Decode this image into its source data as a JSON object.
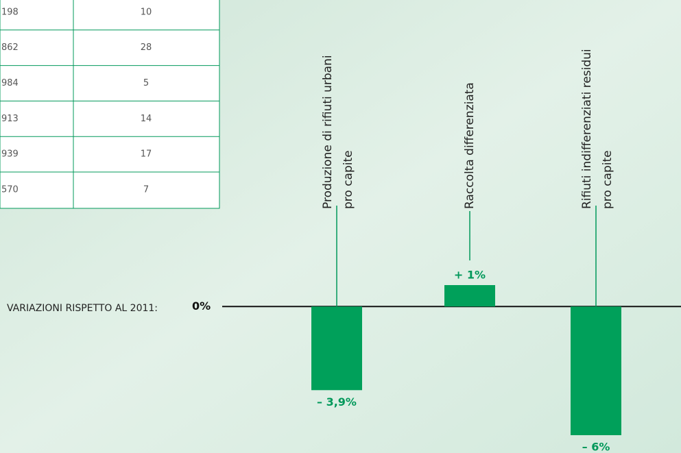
{
  "table": {
    "rows": [
      [
        "198",
        "10"
      ],
      [
        "862",
        "28"
      ],
      [
        "984",
        "5"
      ],
      [
        "913",
        "14"
      ],
      [
        "939",
        "17"
      ],
      [
        "570",
        "7"
      ]
    ]
  },
  "chart_data": {
    "type": "bar",
    "ylabel": "VARIAZIONI RISPETTO AL 2011:",
    "categories": [
      [
        "Produzione  di  rifiuti  urbani",
        "pro capite"
      ],
      [
        "Raccolta differenziata"
      ],
      [
        "Rifiuti  indifferenziati  residui",
        "pro capite"
      ]
    ],
    "values": [
      -3.9,
      1,
      -6
    ],
    "value_labels": [
      "– 3,9%",
      "+ 1%",
      "– 6%"
    ],
    "color": "#00a05a",
    "label_color": "#00985a",
    "ylim": [
      -6,
      1
    ],
    "yticks": [
      {
        "value": 0,
        "label": "0%"
      }
    ]
  }
}
